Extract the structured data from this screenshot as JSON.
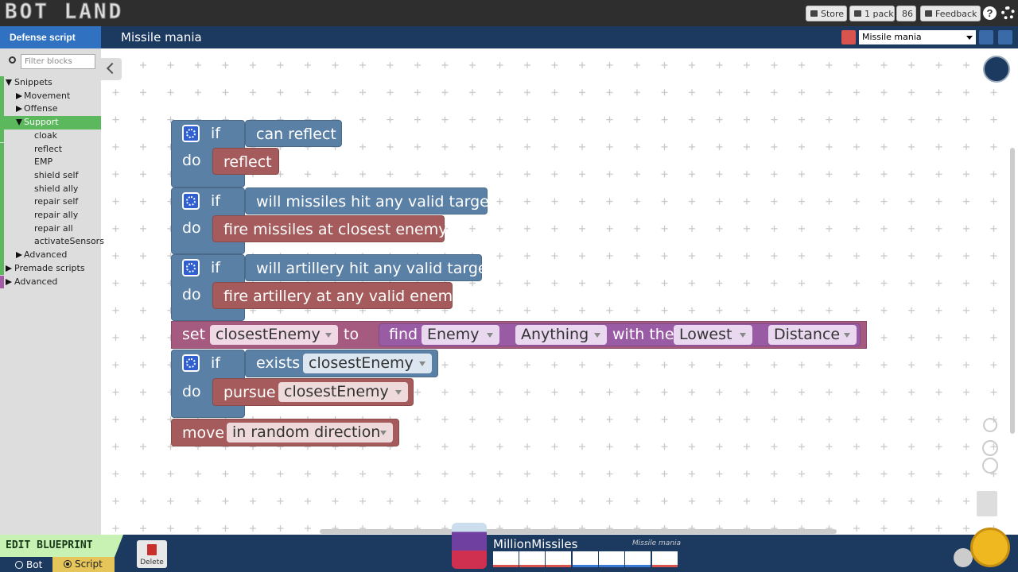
{
  "header": {
    "logo": "BOT LAND",
    "store": "Store",
    "pack": "1 pack",
    "count": "86",
    "feedback": "Feedback",
    "help": "?"
  },
  "toolbar": {
    "script_tab": "Defense script",
    "script_name": "Missile mania",
    "selector": "Missile mania"
  },
  "sidebar": {
    "filter_placeholder": "Filter blocks",
    "tree": [
      {
        "label": "Snippets",
        "children": [
          {
            "label": "Movement"
          },
          {
            "label": "Offense"
          },
          {
            "label": "Support",
            "selected": true,
            "children": [
              {
                "label": "cloak"
              },
              {
                "label": "reflect"
              },
              {
                "label": "EMP"
              },
              {
                "label": "shield self"
              },
              {
                "label": "shield ally"
              },
              {
                "label": "repair self"
              },
              {
                "label": "repair ally"
              },
              {
                "label": "repair all"
              },
              {
                "label": "activateSensors"
              }
            ]
          },
          {
            "label": "Advanced"
          }
        ]
      },
      {
        "label": "Premade scripts"
      },
      {
        "label": "Advanced"
      }
    ]
  },
  "workspace": {
    "blocks": [
      {
        "if": "if",
        "condition": "can reflect",
        "do": "do",
        "action": "reflect"
      },
      {
        "if": "if",
        "condition": "will missiles hit any valid target",
        "do": "do",
        "action": "fire missiles at closest enemy"
      },
      {
        "if": "if",
        "condition": "will artillery hit any valid target",
        "do": "do",
        "action": "fire artillery at any valid enemy"
      },
      {
        "set": "set",
        "variable": "closestEnemy",
        "to": "to",
        "find": "find",
        "target": "Enemy",
        "filter": "Anything",
        "with_the": "with the",
        "order": "Lowest",
        "metric": "Distance"
      },
      {
        "if": "if",
        "exists": "exists",
        "variable": "closestEnemy",
        "do": "do",
        "pursue": "pursue",
        "target": "closestEnemy"
      },
      {
        "move": "move",
        "direction": "in random direction"
      }
    ]
  },
  "footer": {
    "mode": "EDIT BLUEPRINT",
    "bot": "Bot",
    "script": "Script",
    "delete": "Delete",
    "bot_name": "MillionMissiles",
    "bot_script": "Missile mania"
  }
}
